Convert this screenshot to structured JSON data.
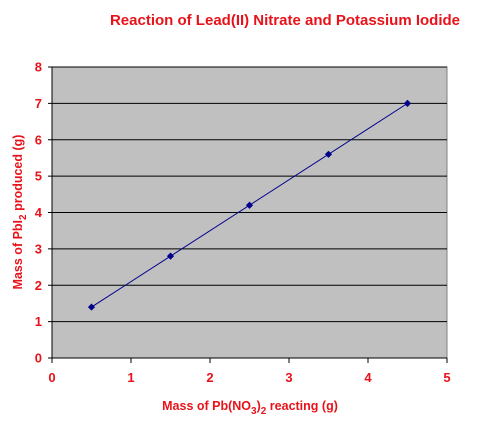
{
  "colors": {
    "text": "#e8131a",
    "plot_background": "#c0c0c0",
    "gridline": "#000000",
    "series": "#00008b"
  },
  "chart_data": {
    "type": "scatter",
    "title": "Reaction of Lead(II) Nitrate and Potassium Iodide",
    "xlabel": {
      "before": "Mass of Pb(NO",
      "sub": "3",
      "after": ")",
      "sub2": "2",
      "after2": " reacting (g)"
    },
    "ylabel": {
      "before": "Mass of PbI",
      "sub": "2",
      "after": " produced (g)"
    },
    "xlim": [
      0,
      5
    ],
    "ylim": [
      0,
      8
    ],
    "xticks": [
      0,
      1,
      2,
      3,
      4,
      5
    ],
    "yticks": [
      0,
      1,
      2,
      3,
      4,
      5,
      6,
      7,
      8
    ],
    "grid": "horizontal",
    "legend": "none",
    "trendline": "linear",
    "series": [
      {
        "x": [
          0.5,
          1.5,
          2.5,
          3.5,
          4.5
        ],
        "y": [
          1.4,
          2.8,
          4.2,
          5.6,
          7.0
        ],
        "marker": "diamond"
      }
    ]
  }
}
